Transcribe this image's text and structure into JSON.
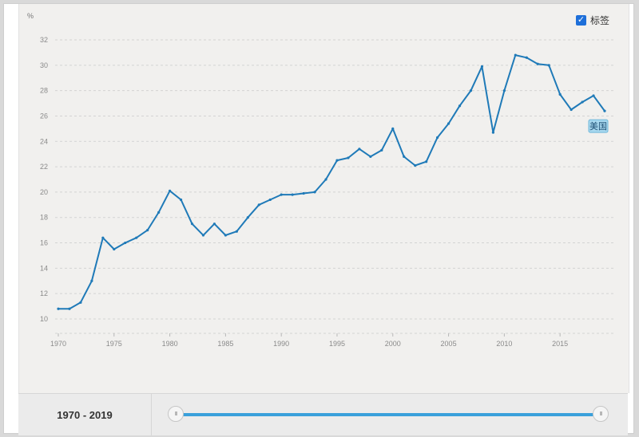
{
  "controls": {
    "label_toggle_text": "标签",
    "label_toggle_checked": true,
    "range_text": "1970 - 2019",
    "handle_grip": "III"
  },
  "colors": {
    "line": "#1f7ab8",
    "label_bg": "#a8d8ef",
    "slider": "#3aa0db"
  },
  "chart_data": {
    "type": "line",
    "y_unit_label": "%",
    "xlim": [
      1970,
      2019
    ],
    "ylim": [
      10,
      32
    ],
    "x_ticks": [
      1970,
      1975,
      1980,
      1985,
      1990,
      1995,
      2000,
      2005,
      2010,
      2015
    ],
    "y_ticks": [
      10,
      12,
      14,
      16,
      18,
      20,
      22,
      24,
      26,
      28,
      30,
      32
    ],
    "grid": "horizontal dashed",
    "series": [
      {
        "name": "美国",
        "x": [
          1970,
          1971,
          1972,
          1973,
          1974,
          1975,
          1976,
          1977,
          1978,
          1979,
          1980,
          1981,
          1982,
          1983,
          1984,
          1985,
          1986,
          1987,
          1988,
          1989,
          1990,
          1991,
          1992,
          1993,
          1994,
          1995,
          1996,
          1997,
          1998,
          1999,
          2000,
          2001,
          2002,
          2003,
          2004,
          2005,
          2006,
          2007,
          2008,
          2009,
          2010,
          2011,
          2012,
          2013,
          2014,
          2015,
          2016,
          2017,
          2018,
          2019
        ],
        "values": [
          10.8,
          10.8,
          11.3,
          13.0,
          16.4,
          15.5,
          16.0,
          16.4,
          17.0,
          18.4,
          20.1,
          19.4,
          17.5,
          16.6,
          17.5,
          16.6,
          16.9,
          18.0,
          19.0,
          19.4,
          19.8,
          19.8,
          19.9,
          20.0,
          21.0,
          22.5,
          22.7,
          23.4,
          22.8,
          23.3,
          25.0,
          22.8,
          22.1,
          22.4,
          24.3,
          25.4,
          26.8,
          28.0,
          29.9,
          24.7,
          28.0,
          30.8,
          30.6,
          30.1,
          30.0,
          27.7,
          26.5,
          27.1,
          27.6,
          26.4
        ]
      }
    ]
  }
}
